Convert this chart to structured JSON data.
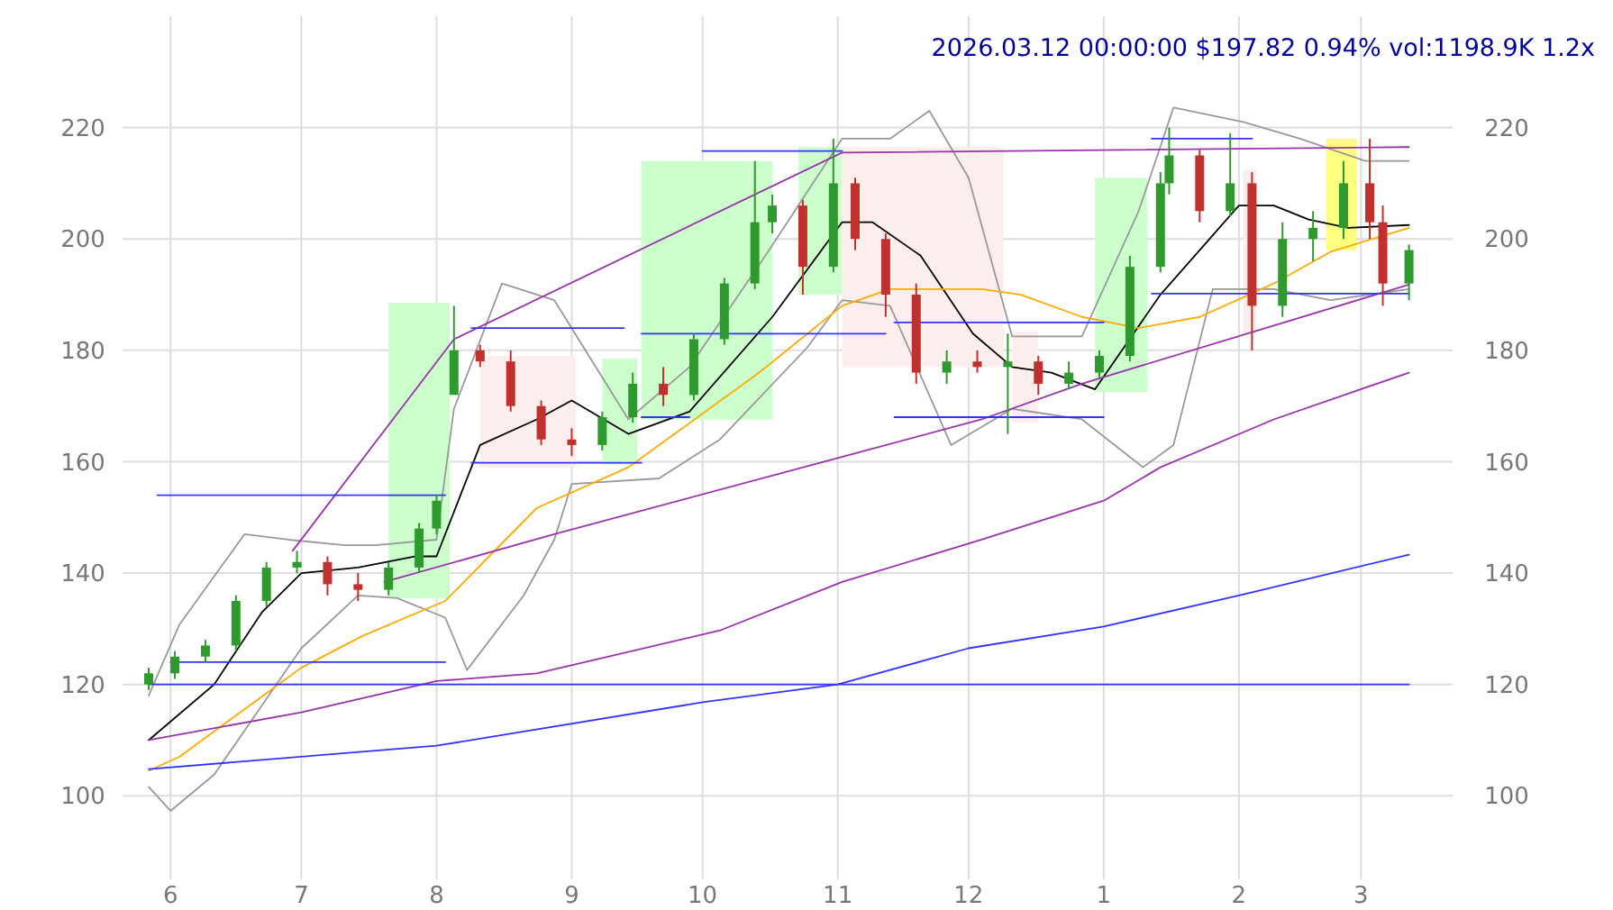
{
  "chart_data": {
    "type": "candlestick",
    "title": "2026.03.12 00:00:00 $197.82 0.94% vol:1198.9K 1.2x",
    "x": [
      "2025-05-27",
      "2025-06-02",
      "2025-06-09",
      "2025-06-16",
      "2025-06-23",
      "2025-06-30",
      "2025-07-07",
      "2025-07-14",
      "2025-07-21",
      "2025-07-28",
      "2025-08-01",
      "2025-08-05",
      "2025-08-11",
      "2025-08-18",
      "2025-08-25",
      "2025-09-01",
      "2025-09-08",
      "2025-09-15",
      "2025-09-22",
      "2025-09-29",
      "2025-10-06",
      "2025-10-13",
      "2025-10-17",
      "2025-10-24",
      "2025-10-31",
      "2025-11-05",
      "2025-11-12",
      "2025-11-19",
      "2025-11-26",
      "2025-12-03",
      "2025-12-10",
      "2025-12-17",
      "2025-12-24",
      "2025-12-31",
      "2026-01-07",
      "2026-01-14",
      "2026-01-16",
      "2026-01-23",
      "2026-01-30",
      "2026-02-04",
      "2026-02-11",
      "2026-02-18",
      "2026-02-25",
      "2026-03-03",
      "2026-03-06",
      "2026-03-12"
    ],
    "ohlc": [
      [
        120,
        123,
        119,
        122
      ],
      [
        122,
        126,
        121,
        125
      ],
      [
        125,
        128,
        124,
        127
      ],
      [
        127,
        136,
        126,
        135
      ],
      [
        135,
        142,
        134,
        141
      ],
      [
        141,
        144,
        140,
        142
      ],
      [
        142,
        143,
        136,
        138
      ],
      [
        138,
        140,
        135,
        137
      ],
      [
        137,
        142,
        136,
        141
      ],
      [
        141,
        149,
        140,
        148
      ],
      [
        148,
        154,
        147,
        153
      ],
      [
        172,
        188,
        172,
        180
      ],
      [
        180,
        181,
        177,
        178
      ],
      [
        178,
        180,
        169,
        170
      ],
      [
        170,
        171,
        163,
        164
      ],
      [
        164,
        166,
        161,
        163
      ],
      [
        163,
        169,
        162,
        168
      ],
      [
        168,
        176,
        167,
        174
      ],
      [
        174,
        177,
        170,
        172
      ],
      [
        172,
        183,
        171,
        182
      ],
      [
        182,
        193,
        181,
        192
      ],
      [
        192,
        214,
        191,
        203
      ],
      [
        203,
        208,
        201,
        206
      ],
      [
        206,
        207,
        190,
        195
      ],
      [
        195,
        218,
        194,
        210
      ],
      [
        210,
        211,
        198,
        200
      ],
      [
        200,
        201,
        186,
        190
      ],
      [
        190,
        192,
        174,
        176
      ],
      [
        176,
        180,
        174,
        178
      ],
      [
        178,
        180,
        176,
        177
      ],
      [
        177,
        183,
        165,
        178
      ],
      [
        178,
        179,
        172,
        174
      ],
      [
        174,
        178,
        173,
        176
      ],
      [
        176,
        180,
        175,
        179
      ],
      [
        179,
        197,
        178,
        195
      ],
      [
        195,
        212,
        194,
        210
      ],
      [
        210,
        220,
        208,
        215
      ],
      [
        215,
        216,
        203,
        205
      ],
      [
        205,
        219,
        204,
        210
      ],
      [
        210,
        212,
        180,
        188
      ],
      [
        188,
        203,
        186,
        200
      ],
      [
        200,
        205,
        196,
        202
      ],
      [
        202,
        214,
        200,
        210
      ],
      [
        210,
        218,
        200,
        203
      ],
      [
        203,
        206,
        188,
        192
      ],
      [
        192,
        199,
        189,
        198
      ]
    ],
    "series": [
      {
        "type": "area",
        "color": "#ccffcc",
        "x": [
          "2025-07-21",
          "2025-08-04"
        ],
        "values": [
          null,
          null
        ],
        "lower": [
          135.5,
          135.5
        ],
        "upper": [
          188.5,
          188.5
        ]
      },
      {
        "type": "area",
        "color": "#fdeeee",
        "x": [
          "2025-08-11",
          "2025-09-02"
        ],
        "values": [
          null,
          null
        ],
        "lower": [
          159,
          159
        ],
        "upper": [
          179,
          179
        ]
      },
      {
        "type": "area",
        "color": "#ccffcc",
        "x": [
          "2025-09-08",
          "2025-09-16"
        ],
        "values": [
          null,
          null
        ],
        "lower": [
          159.5,
          159.5
        ],
        "upper": [
          178.5,
          178.5
        ]
      },
      {
        "type": "area",
        "color": "#ccffcc",
        "x": [
          "2025-09-17",
          "2025-10-17"
        ],
        "values": [
          null,
          null
        ],
        "lower": [
          167.5,
          167.5
        ],
        "upper": [
          214,
          214
        ]
      },
      {
        "type": "area",
        "color": "#ccffcc",
        "x": [
          "2025-10-23",
          "2025-11-02"
        ],
        "values": [
          null,
          null
        ],
        "lower": [
          190,
          190
        ],
        "upper": [
          216.5,
          216.5
        ]
      },
      {
        "type": "area",
        "color": "#fdeeee",
        "x": [
          "2025-11-02",
          "2025-12-09"
        ],
        "values": [
          null,
          null
        ],
        "lower": [
          177,
          177
        ],
        "upper": [
          216.5,
          216.5
        ]
      },
      {
        "type": "area",
        "color": "#fdeeee",
        "x": [
          "2025-12-11",
          "2025-12-17"
        ],
        "values": [
          null,
          null
        ],
        "lower": [
          167,
          167
        ],
        "upper": [
          183.5,
          183.5
        ]
      },
      {
        "type": "area",
        "color": "#ccffcc",
        "x": [
          "2025-12-30",
          "2026-01-11"
        ],
        "values": [
          null,
          null
        ],
        "lower": [
          172.5,
          172.5
        ],
        "upper": [
          211,
          211
        ]
      },
      {
        "type": "area",
        "color": "#fdeeee",
        "x": [
          "2026-02-02",
          "2026-02-05"
        ],
        "values": [
          null,
          null
        ],
        "lower": [
          183,
          183
        ],
        "upper": [
          212.5,
          212.5
        ]
      },
      {
        "type": "area",
        "color": "#ffff80",
        "x": [
          "2026-02-21",
          "2026-02-28"
        ],
        "values": [
          null,
          null
        ],
        "lower": [
          198,
          198
        ],
        "upper": [
          218,
          218
        ]
      },
      {
        "type": "line",
        "color": "#999999",
        "x": [
          "2025-05-27",
          "2025-06-03",
          "2025-06-18",
          "2025-06-28",
          "2025-07-11",
          "2025-07-18",
          "2025-08-01",
          "2025-08-05",
          "2025-08-16",
          "2025-08-28",
          "2025-09-14",
          "2025-09-28",
          "2025-10-16",
          "2025-11-02",
          "2025-11-13",
          "2025-11-22",
          "2025-12-01",
          "2025-12-11",
          "2025-12-27",
          "2026-01-09",
          "2026-01-17",
          "2026-02-02",
          "2026-02-15",
          "2026-03-02",
          "2026-03-12"
        ],
        "values": [
          118,
          130.7,
          147,
          146,
          145,
          145,
          146,
          169.5,
          192,
          189,
          167.6,
          177,
          197.7,
          218,
          218,
          223,
          211,
          182.5,
          182.5,
          205,
          223.6,
          221,
          218,
          214,
          214
        ]
      },
      {
        "type": "line",
        "color": "#999999",
        "x": [
          "2025-05-27",
          "2025-06-01",
          "2025-06-11",
          "2025-07-01",
          "2025-07-14",
          "2025-07-23",
          "2025-08-03",
          "2025-08-08",
          "2025-08-21",
          "2025-08-28",
          "2025-09-01",
          "2025-09-21",
          "2025-10-05",
          "2025-10-25",
          "2025-11-02",
          "2025-11-13",
          "2025-11-27",
          "2025-12-11",
          "2025-12-27",
          "2026-01-10",
          "2026-01-17",
          "2026-01-26",
          "2026-02-09",
          "2026-02-22",
          "2026-03-12"
        ],
        "values": [
          101.6,
          97.3,
          103.8,
          126.5,
          136,
          135.5,
          132,
          122.6,
          136,
          146,
          156,
          157,
          164,
          180.5,
          189,
          188,
          163,
          169.5,
          167.6,
          159,
          163,
          191,
          191,
          189,
          191
        ]
      },
      {
        "type": "line",
        "color": "#000000",
        "x": [
          "2025-05-27",
          "2025-06-11",
          "2025-06-22",
          "2025-07-01",
          "2025-07-14",
          "2025-07-27",
          "2025-08-01",
          "2025-08-11",
          "2025-08-24",
          "2025-09-01",
          "2025-09-14",
          "2025-09-28",
          "2025-10-17",
          "2025-11-02",
          "2025-11-09",
          "2025-11-20",
          "2025-12-02",
          "2025-12-11",
          "2025-12-20",
          "2025-12-30",
          "2026-01-14",
          "2026-02-01",
          "2026-02-09",
          "2026-02-17",
          "2026-02-26",
          "2026-03-12"
        ],
        "values": [
          110,
          120,
          133,
          140,
          141,
          143,
          143,
          163,
          167.6,
          171,
          165,
          169,
          186,
          203,
          203,
          197,
          183,
          177,
          176,
          173,
          190,
          206,
          206,
          203.5,
          202,
          202.5
        ]
      },
      {
        "type": "line",
        "color": "#ffaa00",
        "x": [
          "2025-05-27",
          "2025-06-03",
          "2025-07-01",
          "2025-07-15",
          "2025-08-03",
          "2025-08-24",
          "2025-09-14",
          "2025-10-14",
          "2025-11-02",
          "2025-11-13",
          "2025-12-04",
          "2025-12-13",
          "2025-12-27",
          "2026-01-09",
          "2026-01-23",
          "2026-02-09",
          "2026-02-22",
          "2026-03-12"
        ],
        "values": [
          104.5,
          107,
          123,
          128.7,
          135,
          151.7,
          159,
          176,
          188,
          191,
          191,
          190,
          186,
          184,
          186,
          192,
          197.7,
          202
        ]
      },
      {
        "type": "line",
        "color": "#9933aa",
        "x": [
          "2025-06-29",
          "2025-08-05",
          "2025-11-02",
          "2026-03-12"
        ],
        "values": [
          144,
          182,
          215.5,
          216.5
        ]
      },
      {
        "type": "line",
        "color": "#9933aa",
        "x": [
          "2025-07-20",
          "2025-08-28",
          "2025-12-04",
          "2025-12-27",
          "2026-03-12"
        ],
        "values": [
          138.4,
          147,
          167.6,
          174,
          191.8
        ]
      },
      {
        "type": "line",
        "color": "#9933aa",
        "x": [
          "2025-05-27",
          "2025-07-01",
          "2025-08-01",
          "2025-08-24",
          "2025-10-05",
          "2025-11-02",
          "2025-12-04",
          "2026-01-01",
          "2026-01-14",
          "2026-02-09",
          "2026-03-12"
        ],
        "values": [
          110,
          115,
          120.6,
          122,
          129.7,
          138.4,
          146,
          153,
          159,
          167.6,
          176
        ]
      },
      {
        "type": "line",
        "color": "#3333ff",
        "x": [
          "2025-05-27",
          "2025-08-01",
          "2025-10-01",
          "2025-11-01",
          "2025-12-01",
          "2026-01-01",
          "2026-02-01",
          "2026-03-12"
        ],
        "values": [
          104.8,
          109,
          116.8,
          120,
          126.5,
          130.4,
          136,
          143.3
        ]
      },
      {
        "type": "line",
        "color": "#3333ff",
        "x": [
          "2025-05-27",
          "2026-03-12"
        ],
        "values": [
          120,
          120
        ]
      },
      {
        "type": "line",
        "color": "#3333ff",
        "x": [
          "2025-05-29",
          "2025-08-03"
        ],
        "values": [
          154,
          154
        ]
      },
      {
        "type": "line",
        "color": "#3333ff",
        "x": [
          "2025-06-01",
          "2025-08-03"
        ],
        "values": [
          124,
          124
        ]
      },
      {
        "type": "line",
        "color": "#3333ff",
        "x": [
          "2025-08-09",
          "2025-09-13"
        ],
        "values": [
          184,
          184
        ]
      },
      {
        "type": "line",
        "color": "#3333ff",
        "x": [
          "2025-08-09",
          "2025-09-17"
        ],
        "values": [
          159.8,
          159.8
        ]
      },
      {
        "type": "line",
        "color": "#3333ff",
        "x": [
          "2025-09-17",
          "2025-11-12"
        ],
        "values": [
          183,
          183
        ]
      },
      {
        "type": "line",
        "color": "#3333ff",
        "x": [
          "2025-09-17",
          "2025-09-28"
        ],
        "values": [
          168,
          168
        ]
      },
      {
        "type": "line",
        "color": "#3333ff",
        "x": [
          "2025-10-01",
          "2025-11-02"
        ],
        "values": [
          215.8,
          215.8
        ]
      },
      {
        "type": "line",
        "color": "#3333ff",
        "x": [
          "2025-11-14",
          "2026-01-01"
        ],
        "values": [
          185,
          185
        ]
      },
      {
        "type": "line",
        "color": "#3333ff",
        "x": [
          "2025-11-14",
          "2026-01-01"
        ],
        "values": [
          168,
          168
        ]
      },
      {
        "type": "line",
        "color": "#3333ff",
        "x": [
          "2026-01-12",
          "2026-02-04"
        ],
        "values": [
          218,
          218
        ]
      },
      {
        "type": "line",
        "color": "#3333ff",
        "x": [
          "2026-01-12",
          "2026-03-12"
        ],
        "values": [
          190.2,
          190.2
        ]
      }
    ],
    "xlim": [
      "2025-05-21",
      "2026-03-22"
    ],
    "xticks": [
      {
        "value": "2025-06-01",
        "label": "6"
      },
      {
        "value": "2025-07-01",
        "label": "7"
      },
      {
        "value": "2025-08-01",
        "label": "8"
      },
      {
        "value": "2025-09-01",
        "label": "9"
      },
      {
        "value": "2025-10-01",
        "label": "10"
      },
      {
        "value": "2025-11-01",
        "label": "11"
      },
      {
        "value": "2025-12-01",
        "label": "12"
      },
      {
        "value": "2026-01-01",
        "label": "1"
      },
      {
        "value": "2026-02-01",
        "label": "2"
      },
      {
        "value": "2026-03-01",
        "label": "3"
      }
    ],
    "ylim": [
      85,
      240
    ],
    "yticks": [
      100,
      120,
      140,
      160,
      180,
      200,
      220
    ],
    "y2lim": [
      85,
      240
    ],
    "y2ticks": [
      100,
      120,
      140,
      160,
      180,
      200,
      220
    ],
    "grid": true
  }
}
